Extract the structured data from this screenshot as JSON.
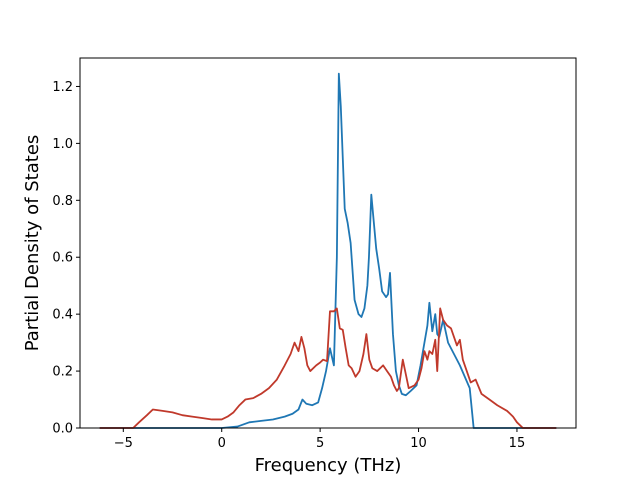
{
  "chart_data": {
    "type": "line",
    "title": "",
    "xlabel": "Frequency (THz)",
    "ylabel": "Partial Density of States",
    "xlim": [
      -7.2,
      18.0
    ],
    "ylim": [
      0.0,
      1.3
    ],
    "xticks": [
      -5,
      0,
      5,
      10,
      15
    ],
    "yticks": [
      0.0,
      0.2,
      0.4,
      0.6,
      0.8,
      1.0,
      1.2
    ],
    "xtick_labels": [
      "−5",
      "0",
      "5",
      "10",
      "15"
    ],
    "ytick_labels": [
      "0.0",
      "0.2",
      "0.4",
      "0.6",
      "0.8",
      "1.0",
      "1.2"
    ],
    "grid": false,
    "legend": false,
    "series": [
      {
        "color": "#1f77b4",
        "x": [
          -6.2,
          0.0,
          0.8,
          1.4,
          2.0,
          2.6,
          3.2,
          3.6,
          3.9,
          4.1,
          4.3,
          4.6,
          4.9,
          5.1,
          5.3,
          5.4,
          5.5,
          5.7,
          5.85,
          5.95,
          6.05,
          6.25,
          6.4,
          6.55,
          6.75,
          6.95,
          7.1,
          7.25,
          7.4,
          7.48,
          7.6,
          7.85,
          8.0,
          8.15,
          8.35,
          8.45,
          8.55,
          8.7,
          8.85,
          9.0,
          9.15,
          9.35,
          9.6,
          9.9,
          10.1,
          10.3,
          10.45,
          10.55,
          10.7,
          10.85,
          10.95,
          11.05,
          11.25,
          11.5,
          11.8,
          12.1,
          12.35,
          12.6,
          12.8,
          17.0
        ],
        "y": [
          0.0,
          0.0,
          0.005,
          0.02,
          0.025,
          0.03,
          0.04,
          0.05,
          0.065,
          0.1,
          0.085,
          0.08,
          0.09,
          0.14,
          0.2,
          0.24,
          0.28,
          0.22,
          0.6,
          1.245,
          1.13,
          0.77,
          0.72,
          0.65,
          0.45,
          0.4,
          0.39,
          0.42,
          0.5,
          0.6,
          0.82,
          0.63,
          0.56,
          0.48,
          0.46,
          0.47,
          0.545,
          0.33,
          0.2,
          0.15,
          0.12,
          0.115,
          0.13,
          0.15,
          0.22,
          0.3,
          0.36,
          0.44,
          0.34,
          0.4,
          0.33,
          0.32,
          0.38,
          0.3,
          0.26,
          0.22,
          0.18,
          0.14,
          0.0,
          0.0
        ]
      },
      {
        "color": "#c0392b",
        "x": [
          -6.2,
          -4.5,
          -4.2,
          -3.8,
          -3.5,
          -3.0,
          -2.5,
          -2.0,
          -1.5,
          -1.0,
          -0.5,
          0.0,
          0.3,
          0.6,
          0.9,
          1.2,
          1.6,
          2.0,
          2.4,
          2.8,
          3.2,
          3.5,
          3.7,
          3.9,
          4.05,
          4.2,
          4.35,
          4.5,
          4.8,
          5.0,
          5.15,
          5.35,
          5.5,
          5.7,
          5.85,
          6.0,
          6.15,
          6.3,
          6.45,
          6.6,
          6.8,
          7.0,
          7.2,
          7.35,
          7.5,
          7.65,
          7.9,
          8.2,
          8.4,
          8.6,
          8.75,
          8.9,
          9.0,
          9.2,
          9.5,
          9.8,
          10.0,
          10.15,
          10.3,
          10.45,
          10.55,
          10.7,
          10.85,
          10.95,
          11.1,
          11.25,
          11.45,
          11.65,
          11.8,
          11.95,
          12.1,
          12.25,
          12.45,
          12.65,
          12.9,
          13.2,
          13.6,
          14.0,
          14.5,
          14.8,
          15.0,
          15.3,
          17.0
        ],
        "y": [
          0.0,
          0.0,
          0.02,
          0.045,
          0.065,
          0.06,
          0.055,
          0.045,
          0.04,
          0.035,
          0.03,
          0.03,
          0.04,
          0.055,
          0.08,
          0.1,
          0.105,
          0.12,
          0.14,
          0.17,
          0.22,
          0.26,
          0.3,
          0.27,
          0.32,
          0.28,
          0.22,
          0.2,
          0.22,
          0.23,
          0.24,
          0.235,
          0.41,
          0.41,
          0.42,
          0.35,
          0.345,
          0.28,
          0.22,
          0.21,
          0.18,
          0.2,
          0.26,
          0.33,
          0.24,
          0.21,
          0.2,
          0.22,
          0.2,
          0.18,
          0.15,
          0.13,
          0.14,
          0.24,
          0.14,
          0.15,
          0.17,
          0.21,
          0.27,
          0.24,
          0.27,
          0.26,
          0.31,
          0.2,
          0.42,
          0.38,
          0.36,
          0.35,
          0.32,
          0.29,
          0.31,
          0.24,
          0.2,
          0.16,
          0.17,
          0.12,
          0.1,
          0.08,
          0.06,
          0.04,
          0.02,
          0.0,
          0.0
        ]
      }
    ]
  }
}
